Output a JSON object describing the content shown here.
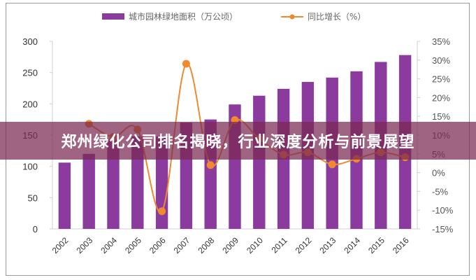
{
  "banner": {
    "title": "郑州绿化公司排名揭晓，行业深度分析与前景展望"
  },
  "colors": {
    "bar": "#8B3A9E",
    "line": "#F08A2E",
    "axis": "#cccccc"
  },
  "chart_data": {
    "type": "bar+line",
    "title": "",
    "categories": [
      "2002",
      "2003",
      "2004",
      "2005",
      "2006",
      "2007",
      "2008",
      "2009",
      "2010",
      "2011",
      "2012",
      "2013",
      "2014",
      "2015",
      "2016"
    ],
    "series": [
      {
        "name": "城市园林绿地面积（万公顷）",
        "type": "bar",
        "axis": "left",
        "values": [
          106,
          120,
          144,
          148,
          148,
          170,
          175,
          199,
          213,
          224,
          235,
          242,
          252,
          267,
          278
        ]
      },
      {
        "name": "同比增长（%）",
        "type": "line",
        "axis": "right",
        "values": [
          null,
          13,
          9.5,
          11.5,
          -10.3,
          29,
          2,
          14,
          9,
          4.8,
          5.4,
          2.2,
          3.7,
          5.4,
          4.1
        ]
      }
    ],
    "left_axis": {
      "ylim": [
        0,
        300
      ],
      "ticks": [
        "0",
        "50",
        "100",
        "150",
        "200",
        "250",
        "300"
      ]
    },
    "right_axis": {
      "ylim": [
        -15,
        35
      ],
      "ticks": [
        "-15%",
        "-10%",
        "-5%",
        "0%",
        "5%",
        "10%",
        "15%",
        "20%",
        "25%",
        "30%",
        "35%"
      ]
    },
    "xlabel": "",
    "ylabel": "",
    "legend": {
      "placement": "top",
      "entries": [
        "城市园林绿地面积（万公顷）",
        "同比增长（%）"
      ]
    },
    "grid": false
  }
}
